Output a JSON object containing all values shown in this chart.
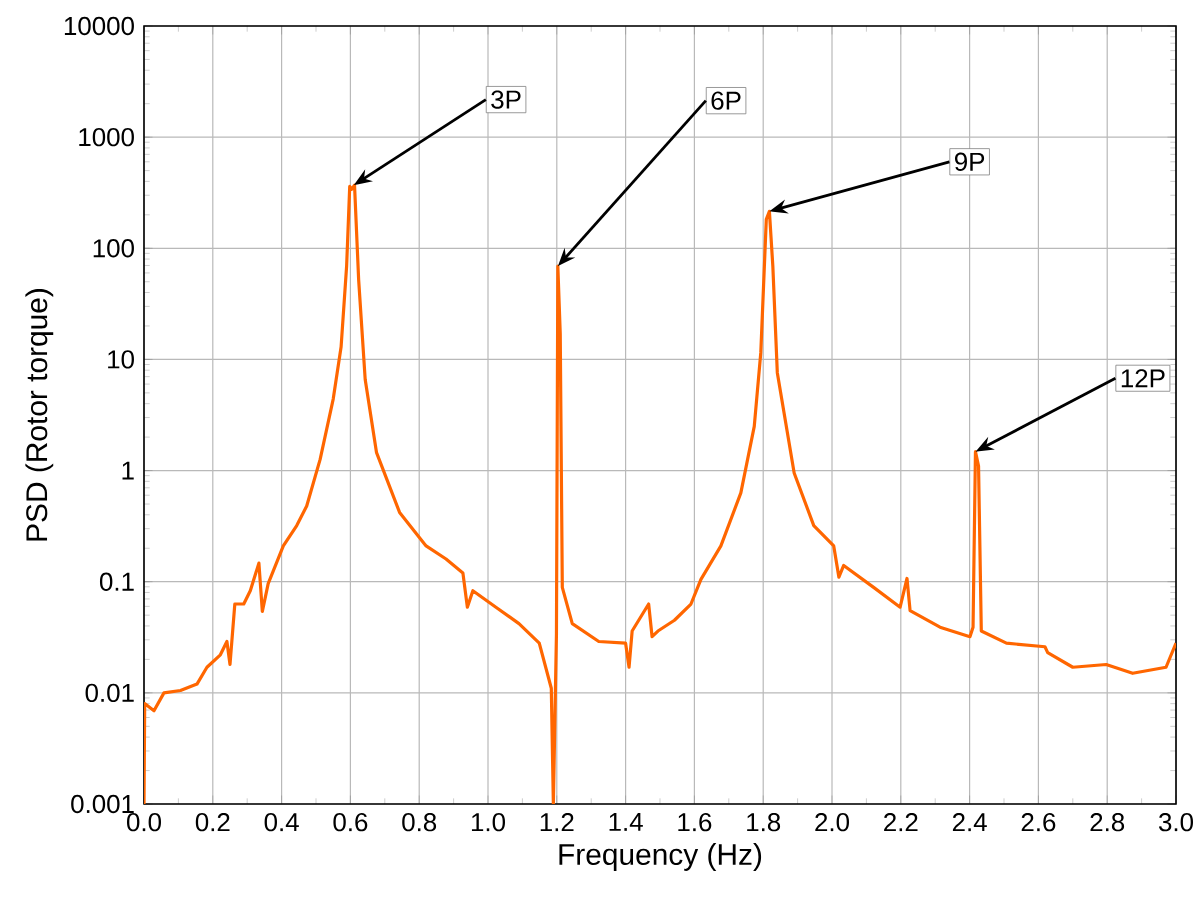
{
  "chart_data": {
    "type": "line",
    "xlabel": "Frequency (Hz)",
    "ylabel": "PSD (Rotor torque)",
    "x": [
      0,
      0.002,
      0.029,
      0.058,
      0.106,
      0.154,
      0.183,
      0.222,
      0.241,
      0.25,
      0.264,
      0.29,
      0.309,
      0.334,
      0.344,
      0.361,
      0.405,
      0.444,
      0.473,
      0.512,
      0.55,
      0.573,
      0.589,
      0.598,
      0.604,
      0.612,
      0.624,
      0.643,
      0.676,
      0.743,
      0.82,
      0.878,
      0.927,
      0.94,
      0.956,
      1.023,
      1.09,
      1.149,
      1.184,
      1.19,
      1.199,
      1.203,
      1.21,
      1.216,
      1.245,
      1.322,
      1.4,
      1.41,
      1.419,
      1.467,
      1.477,
      1.494,
      1.542,
      1.59,
      1.619,
      1.677,
      1.735,
      1.774,
      1.793,
      1.809,
      1.818,
      1.828,
      1.841,
      1.89,
      1.947,
      2.005,
      2.02,
      2.034,
      2.121,
      2.198,
      2.218,
      2.227,
      2.314,
      2.401,
      2.41,
      2.417,
      2.426,
      2.434,
      2.507,
      2.619,
      2.627,
      2.7,
      2.797,
      2.874,
      2.971,
      3.0
    ],
    "series": [
      {
        "color": "#ff6600",
        "values": [
          0.001,
          0.008,
          0.0069,
          0.01,
          0.0105,
          0.012,
          0.017,
          0.022,
          0.029,
          0.018,
          0.063,
          0.063,
          0.083,
          0.147,
          0.054,
          0.096,
          0.21,
          0.32,
          0.48,
          1.26,
          4.4,
          13,
          69,
          360,
          340,
          370,
          52,
          6.6,
          1.45,
          0.42,
          0.21,
          0.16,
          0.12,
          0.059,
          0.083,
          0.059,
          0.042,
          0.028,
          0.011,
          0.001,
          0.034,
          69,
          17,
          0.089,
          0.042,
          0.029,
          0.028,
          0.017,
          0.036,
          0.063,
          0.032,
          0.036,
          0.045,
          0.063,
          0.105,
          0.21,
          0.63,
          2.5,
          11.5,
          182,
          215,
          69,
          7.6,
          0.95,
          0.32,
          0.21,
          0.11,
          0.14,
          0.089,
          0.059,
          0.107,
          0.055,
          0.039,
          0.032,
          0.039,
          1.48,
          1.1,
          0.036,
          0.028,
          0.026,
          0.023,
          0.017,
          0.018,
          0.015,
          0.017,
          0.028
        ]
      }
    ],
    "xlim": [
      0,
      3
    ],
    "ylim": [
      0.001,
      10000
    ],
    "log": "y",
    "grid": true,
    "line_style": "solid",
    "xticks": [
      {
        "value": 0,
        "label": "0.0"
      },
      0.2,
      0.4,
      0.6,
      0.8,
      {
        "value": 1,
        "label": "1.0"
      },
      1.2,
      1.4,
      1.6,
      1.8,
      {
        "value": 2,
        "label": "2.0"
      },
      2.2,
      2.4,
      2.6,
      2.8,
      {
        "value": 3,
        "label": "3.0"
      }
    ],
    "yticks": [
      0.001,
      0.01,
      0.1,
      1,
      10,
      100,
      1000,
      10000
    ],
    "annotations": [
      {
        "text": "3P",
        "x": 0.61,
        "y": 370
      },
      {
        "text": "6P",
        "x": 1.203,
        "y": 69
      },
      {
        "text": "9P",
        "x": 1.818,
        "y": 215
      },
      {
        "text": "12P",
        "x": 2.417,
        "y": 1.48
      }
    ]
  }
}
